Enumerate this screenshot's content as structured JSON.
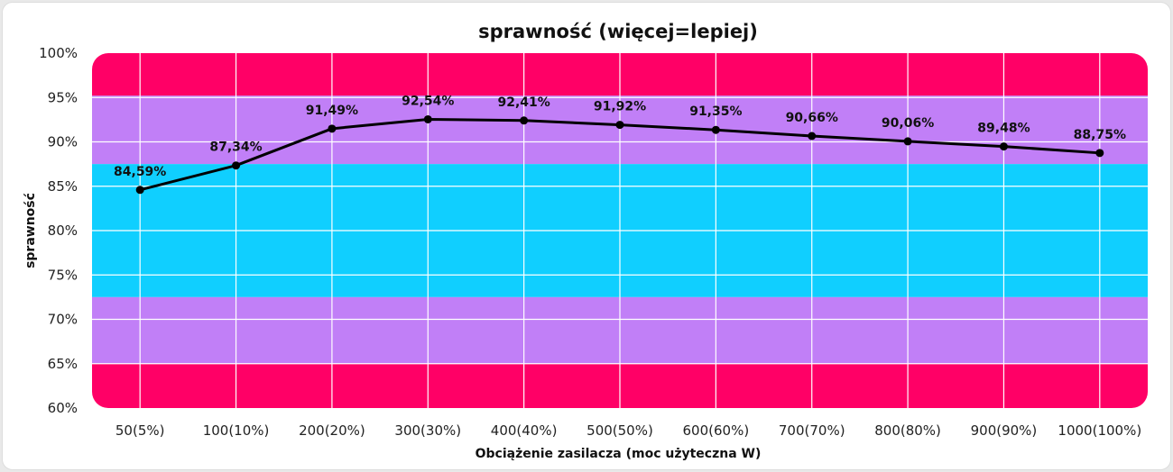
{
  "chart_data": {
    "type": "line",
    "title": "sprawność (więcej=lepiej)",
    "xlabel": "Obciążenie zasilacza (moc użyteczna W)",
    "ylabel": "sprawność",
    "categories": [
      "50(5%)",
      "100(10%)",
      "200(20%)",
      "300(30%)",
      "400(40%)",
      "500(50%)",
      "600(60%)",
      "700(70%)",
      "800(80%)",
      "900(90%)",
      "1000(100%)"
    ],
    "series": [
      {
        "values": [
          84.59,
          87.34,
          91.49,
          92.54,
          92.41,
          91.92,
          91.35,
          90.66,
          90.06,
          89.48,
          88.75
        ],
        "labels": [
          "84,59%",
          "87,34%",
          "91,49%",
          "92,54%",
          "92,41%",
          "91,92%",
          "91,35%",
          "90,66%",
          "90,06%",
          "89,48%",
          "88,75%"
        ],
        "color": "#000000"
      }
    ],
    "ylim": [
      60,
      100
    ],
    "yticks": [
      100,
      95,
      90,
      85,
      80,
      75,
      70,
      65,
      60
    ],
    "ytick_labels": [
      "100%",
      "95%",
      "90%",
      "85%",
      "80%",
      "75%",
      "70%",
      "65%",
      "60%"
    ],
    "bands": [
      {
        "from": 95.2,
        "to": 100,
        "color": "#ff0066"
      },
      {
        "from": 87.5,
        "to": 95.2,
        "color": "#c17ff7"
      },
      {
        "from": 72.5,
        "to": 87.5,
        "color": "#10cfff"
      },
      {
        "from": 65,
        "to": 72.5,
        "color": "#c17ff7"
      },
      {
        "from": 60,
        "to": 65,
        "color": "#ff0066"
      }
    ],
    "grid": true,
    "legend": "none"
  }
}
